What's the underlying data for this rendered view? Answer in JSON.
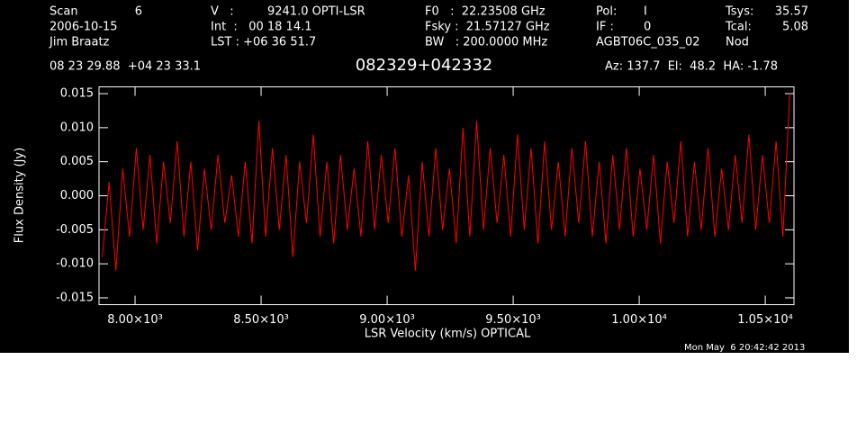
{
  "chart_data": {
    "type": "line",
    "title": "082329+042332",
    "annotations": [
      "Scan",
      "6",
      "V   :",
      "9241.0 OPTI-LSR",
      "F0   :  22.23508 GHz",
      "Pol:",
      "I",
      "Tsys:",
      "35.57",
      "2006-10-15",
      "Int  :   00 18 14.1",
      "Fsky :  21.57127 GHz",
      "IF :",
      "0",
      "Tcal:",
      "5.08",
      "Jim Braatz",
      "LST : +06 36 51.7",
      "BW   : 200.0000 MHz",
      "AGBT06C_035_02",
      "Nod",
      "08 23 29.88  +04 23 33.1",
      "Az: 137.7  El:  48.2  HA: -1.78",
      "Mon May  6 20:42:42 2013"
    ],
    "xlabel": "LSR Velocity (km/s) OPTICAL",
    "ylabel": "Flux Density (Jy)",
    "xlim": [
      7857,
      10614
    ],
    "ylim": [
      -0.016,
      0.016
    ],
    "xticks": [
      {
        "value": 8000,
        "label": "8.00×10³"
      },
      {
        "value": 8500,
        "label": "8.50×10³"
      },
      {
        "value": 9000,
        "label": "9.00×10³"
      },
      {
        "value": 9500,
        "label": "9.50×10³"
      },
      {
        "value": 10000,
        "label": "1.00×10⁴"
      },
      {
        "value": 10500,
        "label": "1.05×10⁴"
      }
    ],
    "yticks": [
      0.015,
      {
        "value": 0.01,
        "label": "0.010"
      },
      0.005,
      {
        "value": 0,
        "label": "0.000"
      },
      -0.005,
      {
        "value": -0.01,
        "label": "-0.010"
      },
      -0.015
    ],
    "x": [
      7870,
      7897,
      7924,
      7951,
      7978,
      8005,
      8032,
      8059,
      8086,
      8113,
      8140,
      8167,
      8194,
      8221,
      8248,
      8275,
      8302,
      8329,
      8356,
      8383,
      8410,
      8437,
      8464,
      8491,
      8518,
      8545,
      8572,
      8599,
      8626,
      8653,
      8680,
      8707,
      8734,
      8761,
      8788,
      8815,
      8842,
      8869,
      8896,
      8923,
      8950,
      8977,
      9004,
      9031,
      9058,
      9085,
      9112,
      9139,
      9166,
      9193,
      9220,
      9247,
      9274,
      9301,
      9328,
      9355,
      9382,
      9409,
      9436,
      9463,
      9490,
      9517,
      9544,
      9571,
      9598,
      9625,
      9652,
      9679,
      9706,
      9733,
      9760,
      9787,
      9814,
      9841,
      9868,
      9895,
      9922,
      9949,
      9976,
      10003,
      10030,
      10057,
      10084,
      10111,
      10138,
      10165,
      10192,
      10219,
      10246,
      10273,
      10300,
      10327,
      10354,
      10381,
      10408,
      10435,
      10462,
      10489,
      10516,
      10543,
      10570,
      10597
    ],
    "series": [
      {
        "color": "#ff0000",
        "values": [
          -0.009,
          0.002,
          -0.011,
          0.004,
          -0.006,
          0.007,
          -0.005,
          0.006,
          -0.007,
          0.005,
          -0.004,
          0.008,
          -0.006,
          0.005,
          -0.008,
          0.004,
          -0.005,
          0.006,
          -0.004,
          0.003,
          -0.006,
          0.005,
          -0.007,
          0.011,
          -0.006,
          0.007,
          -0.005,
          0.006,
          -0.009,
          0.005,
          -0.004,
          0.009,
          -0.006,
          0.005,
          -0.007,
          0.006,
          -0.005,
          0.004,
          -0.006,
          0.008,
          -0.005,
          0.006,
          -0.004,
          0.007,
          -0.006,
          0.003,
          -0.011,
          0.005,
          -0.006,
          0.007,
          -0.005,
          0.004,
          -0.007,
          0.01,
          -0.006,
          0.011,
          -0.005,
          0.007,
          -0.004,
          0.006,
          -0.006,
          0.009,
          -0.005,
          0.007,
          -0.007,
          0.008,
          -0.005,
          0.005,
          -0.006,
          0.007,
          -0.004,
          0.008,
          -0.006,
          0.005,
          -0.007,
          0.006,
          -0.005,
          0.007,
          -0.006,
          0.004,
          -0.005,
          0.006,
          -0.007,
          0.005,
          -0.004,
          0.008,
          -0.006,
          0.005,
          -0.005,
          0.007,
          -0.006,
          0.004,
          -0.005,
          0.006,
          -0.004,
          0.009,
          -0.005,
          0.006,
          -0.004,
          0.008,
          -0.006,
          0.015
        ]
      }
    ]
  }
}
